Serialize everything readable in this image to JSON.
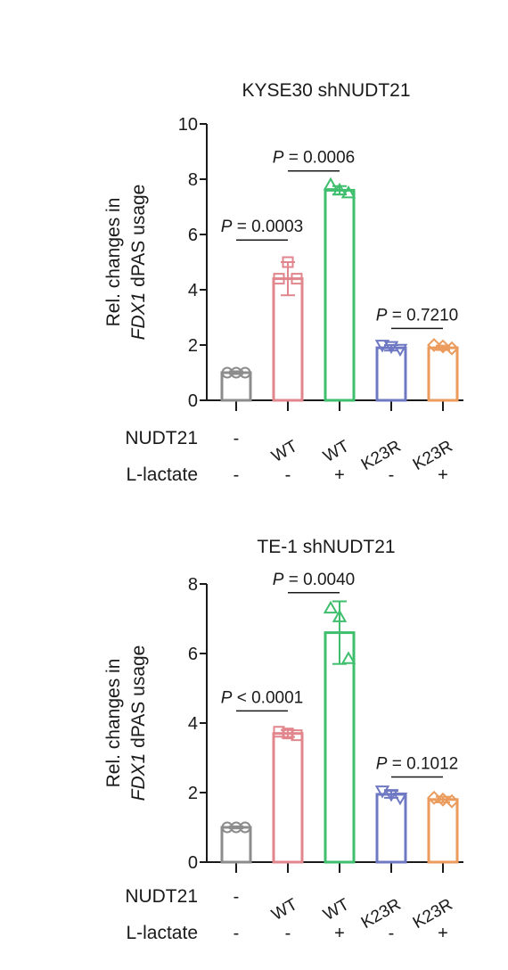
{
  "chart_data": [
    {
      "type": "bar",
      "title": "KYSE30 shNUDT21",
      "ylabel_line1": "Rel. changes in",
      "ylabel_line2_italic": "FDX1",
      "ylabel_line2_rest": " dPAS usage",
      "ylim": [
        0,
        10
      ],
      "yticks": [
        0,
        2,
        4,
        6,
        8,
        10
      ],
      "row_labels": [
        "NUDT21",
        "L-lactate"
      ],
      "categories": [
        {
          "nudt21": "-",
          "lactate": "-"
        },
        {
          "nudt21": "WT",
          "lactate": "-"
        },
        {
          "nudt21": "WT",
          "lactate": "+"
        },
        {
          "nudt21": "K23R",
          "lactate": "-"
        },
        {
          "nudt21": "K23R",
          "lactate": "+"
        }
      ],
      "values": [
        1.0,
        4.4,
        7.6,
        1.9,
        1.9
      ],
      "errors": [
        0.05,
        0.6,
        0.15,
        0.1,
        0.08
      ],
      "points": [
        [
          1.0,
          1.0,
          1.0
        ],
        [
          4.4,
          5.0,
          4.4
        ],
        [
          7.8,
          7.6,
          7.5
        ],
        [
          2.0,
          1.95,
          1.85
        ],
        [
          2.0,
          1.95,
          1.88
        ]
      ],
      "markers": [
        "circle",
        "square",
        "triangle-up",
        "triangle-down",
        "diamond"
      ],
      "colors": [
        "#8c8c8c",
        "#e0868c",
        "#3fbf6e",
        "#6f78c2",
        "#eb9b5c"
      ],
      "comparisons": [
        {
          "from": 0,
          "to": 1,
          "y": 5.8,
          "p_label": "P",
          "p_text": " = 0.0003"
        },
        {
          "from": 1,
          "to": 2,
          "y": 8.3,
          "p_label": "P",
          "p_text": " = 0.0006"
        },
        {
          "from": 3,
          "to": 4,
          "y": 2.6,
          "p_label": "P",
          "p_text": " = 0.7210"
        }
      ]
    },
    {
      "type": "bar",
      "title": "TE-1 shNUDT21",
      "ylabel_line1": "Rel. changes in",
      "ylabel_line2_italic": "FDX1",
      "ylabel_line2_rest": " dPAS usage",
      "ylim": [
        0,
        8
      ],
      "yticks": [
        0,
        2,
        4,
        6,
        8
      ],
      "row_labels": [
        "NUDT21",
        "L-lactate"
      ],
      "categories": [
        {
          "nudt21": "-",
          "lactate": "-"
        },
        {
          "nudt21": "WT",
          "lactate": "-"
        },
        {
          "nudt21": "WT",
          "lactate": "+"
        },
        {
          "nudt21": "K23R",
          "lactate": "-"
        },
        {
          "nudt21": "K23R",
          "lactate": "+"
        }
      ],
      "values": [
        1.0,
        3.7,
        6.6,
        1.95,
        1.8
      ],
      "errors": [
        0.03,
        0.1,
        0.9,
        0.1,
        0.08
      ],
      "points": [
        [
          1.0,
          1.0,
          1.0
        ],
        [
          3.75,
          3.7,
          3.65
        ],
        [
          7.3,
          7.05,
          5.85
        ],
        [
          2.05,
          1.95,
          1.85
        ],
        [
          1.85,
          1.8,
          1.75
        ]
      ],
      "markers": [
        "circle",
        "square",
        "triangle-up",
        "triangle-down",
        "diamond"
      ],
      "colors": [
        "#8c8c8c",
        "#e0868c",
        "#3fbf6e",
        "#6f78c2",
        "#eb9b5c"
      ],
      "comparisons": [
        {
          "from": 0,
          "to": 1,
          "y": 4.35,
          "p_label": "P",
          "p_text": " < 0.0001"
        },
        {
          "from": 1,
          "to": 2,
          "y": 7.75,
          "p_label": "P",
          "p_text": " = 0.0040"
        },
        {
          "from": 3,
          "to": 4,
          "y": 2.45,
          "p_label": "P",
          "p_text": " = 0.1012"
        }
      ]
    }
  ]
}
